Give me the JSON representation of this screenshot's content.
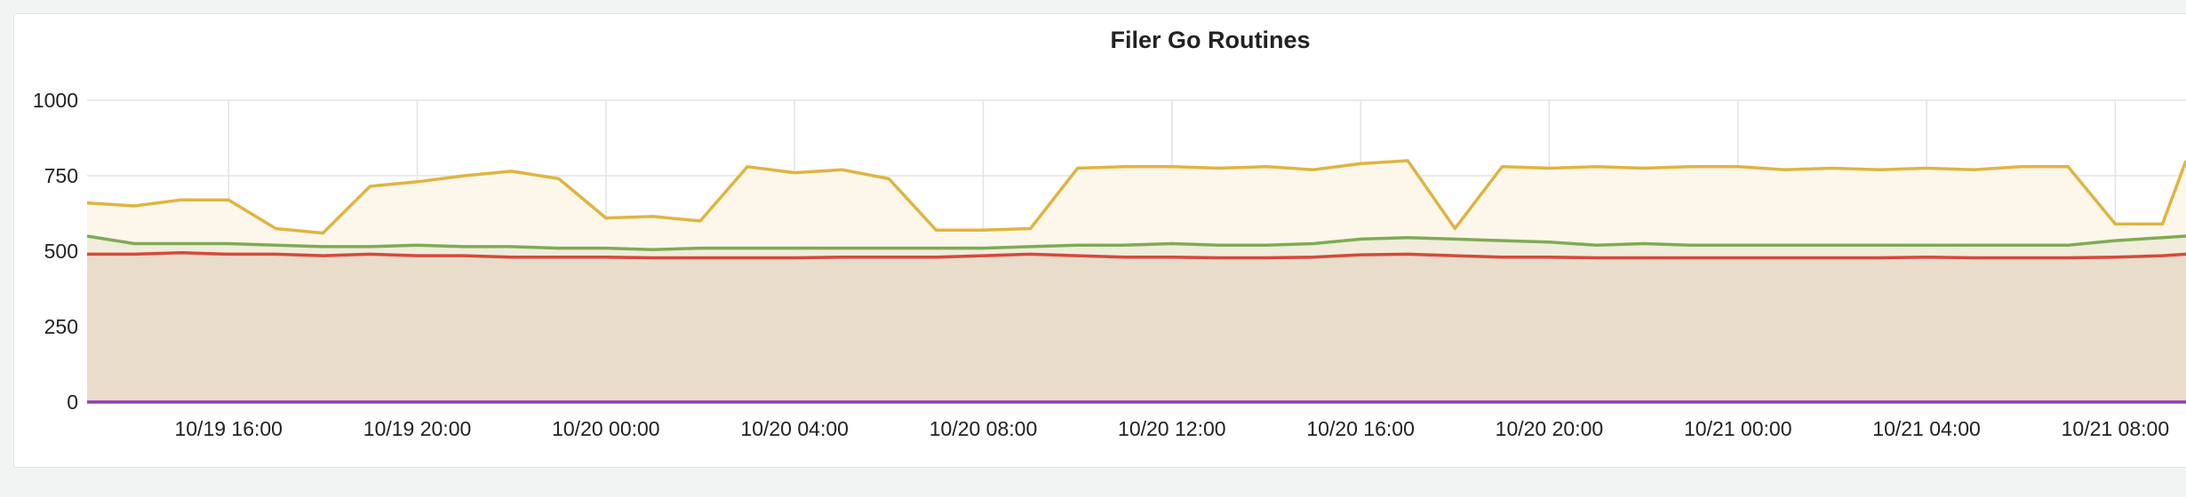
{
  "panel": {
    "title": "Filer Go Routines"
  },
  "chart_data": {
    "type": "area",
    "title": "Filer Go Routines",
    "xlabel": "",
    "ylabel": "",
    "ylim": [
      0,
      1000
    ],
    "y_ticks": [
      0,
      250,
      500,
      750,
      1000
    ],
    "x_range": [
      "10/19 13:00",
      "10/21 09:30"
    ],
    "x_ticks": [
      "10/19 16:00",
      "10/19 20:00",
      "10/20 00:00",
      "10/20 04:00",
      "10/20 08:00",
      "10/20 12:00",
      "10/20 16:00",
      "10/20 20:00",
      "10/21 00:00",
      "10/21 04:00",
      "10/21 08:00"
    ],
    "grid": true,
    "legend": "none",
    "x": [
      "10/19 13:00",
      "10/19 14:00",
      "10/19 15:00",
      "10/19 16:00",
      "10/19 17:00",
      "10/19 18:00",
      "10/19 19:00",
      "10/19 20:00",
      "10/19 21:00",
      "10/19 22:00",
      "10/19 23:00",
      "10/20 00:00",
      "10/20 01:00",
      "10/20 02:00",
      "10/20 03:00",
      "10/20 04:00",
      "10/20 05:00",
      "10/20 06:00",
      "10/20 07:00",
      "10/20 08:00",
      "10/20 09:00",
      "10/20 10:00",
      "10/20 11:00",
      "10/20 12:00",
      "10/20 13:00",
      "10/20 14:00",
      "10/20 15:00",
      "10/20 16:00",
      "10/20 17:00",
      "10/20 18:00",
      "10/20 19:00",
      "10/20 20:00",
      "10/20 21:00",
      "10/20 22:00",
      "10/20 23:00",
      "10/21 00:00",
      "10/21 01:00",
      "10/21 02:00",
      "10/21 03:00",
      "10/21 04:00",
      "10/21 05:00",
      "10/21 06:00",
      "10/21 07:00",
      "10/21 08:00",
      "10/21 09:00",
      "10/21 09:30"
    ],
    "series": [
      {
        "color": "#e0b440",
        "fill": "#fcf7ea",
        "values": [
          660,
          650,
          670,
          670,
          575,
          560,
          715,
          730,
          750,
          765,
          740,
          610,
          615,
          600,
          780,
          760,
          770,
          740,
          570,
          570,
          575,
          775,
          780,
          780,
          775,
          780,
          770,
          790,
          800,
          575,
          780,
          775,
          780,
          775,
          780,
          780,
          770,
          775,
          770,
          775,
          770,
          780,
          780,
          590,
          590,
          800
        ]
      },
      {
        "color": "#7eab55",
        "fill": "#f1ecdc",
        "values": [
          550,
          525,
          525,
          525,
          520,
          515,
          515,
          520,
          515,
          515,
          510,
          510,
          505,
          510,
          510,
          510,
          510,
          510,
          510,
          510,
          515,
          520,
          520,
          525,
          520,
          520,
          525,
          540,
          545,
          540,
          535,
          530,
          520,
          525,
          520,
          520,
          520,
          520,
          520,
          520,
          520,
          520,
          520,
          535,
          545,
          550
        ]
      },
      {
        "color": "#d44a3a",
        "fill": "#eadccb",
        "values": [
          490,
          490,
          495,
          490,
          490,
          485,
          490,
          485,
          485,
          480,
          480,
          480,
          478,
          478,
          478,
          478,
          480,
          480,
          480,
          485,
          490,
          485,
          480,
          480,
          478,
          478,
          480,
          488,
          490,
          485,
          480,
          480,
          478,
          478,
          478,
          478,
          478,
          478,
          478,
          480,
          478,
          478,
          478,
          480,
          485,
          490
        ]
      },
      {
        "color": "#8f3bb8",
        "fill": "none",
        "values": [
          0,
          0,
          0,
          0,
          0,
          0,
          0,
          0,
          0,
          0,
          0,
          0,
          0,
          0,
          0,
          0,
          0,
          0,
          0,
          0,
          0,
          0,
          0,
          0,
          0,
          0,
          0,
          0,
          0,
          0,
          0,
          0,
          0,
          0,
          0,
          0,
          0,
          0,
          0,
          0,
          0,
          0,
          0,
          0,
          0,
          0
        ]
      }
    ]
  }
}
